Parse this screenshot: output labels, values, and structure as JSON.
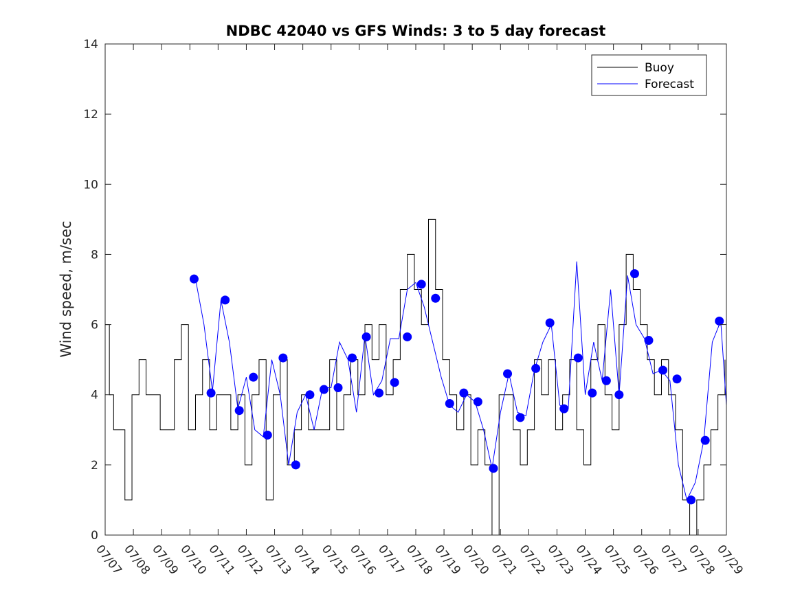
{
  "chart_data": {
    "type": "line",
    "title": "NDBC 42040 vs GFS Winds: 3 to 5 day forecast",
    "xlabel": "",
    "ylabel": "Wind speed, m/sec",
    "xlim": [
      7,
      29
    ],
    "ylim": [
      0,
      14
    ],
    "xticks": [
      "07/07",
      "07/08",
      "07/09",
      "07/10",
      "07/11",
      "07/12",
      "07/13",
      "07/14",
      "07/15",
      "07/16",
      "07/17",
      "07/18",
      "07/19",
      "07/20",
      "07/21",
      "07/22",
      "07/23",
      "07/24",
      "07/25",
      "07/26",
      "07/27",
      "07/28",
      "07/29"
    ],
    "yticks": [
      0,
      2,
      4,
      6,
      8,
      10,
      12,
      14
    ],
    "grid": false,
    "legend": {
      "position": "top-right",
      "entries": [
        "Buoy",
        "Forecast"
      ]
    },
    "colors": {
      "buoy": "#000000",
      "forecast": "#0000ff",
      "markers": "#0000ff"
    },
    "series": [
      {
        "name": "Buoy",
        "color": "#000000",
        "x": [
          7.0,
          7.15,
          7.3,
          7.5,
          7.7,
          7.95,
          8.2,
          8.45,
          8.7,
          8.95,
          9.2,
          9.45,
          9.7,
          9.95,
          10.2,
          10.45,
          10.7,
          10.95,
          11.2,
          11.45,
          11.7,
          11.95,
          12.2,
          12.45,
          12.7,
          12.95,
          13.2,
          13.45,
          13.7,
          13.95,
          14.2,
          14.45,
          14.7,
          14.95,
          15.2,
          15.45,
          15.7,
          15.95,
          16.2,
          16.45,
          16.7,
          16.95,
          17.2,
          17.45,
          17.7,
          17.95,
          18.2,
          18.45,
          18.7,
          18.95,
          19.2,
          19.45,
          19.7,
          19.95,
          20.2,
          20.45,
          20.7,
          20.95,
          21.2,
          21.45,
          21.7,
          21.95,
          22.2,
          22.45,
          22.7,
          22.95,
          23.2,
          23.45,
          23.7,
          23.95,
          24.2,
          24.45,
          24.7,
          24.95,
          25.2,
          25.45,
          25.7,
          25.95,
          26.2,
          26.45,
          26.7,
          26.95,
          27.2,
          27.45,
          27.7,
          27.95,
          28.2,
          28.45,
          28.7,
          28.95
        ],
        "y": [
          6,
          4,
          3,
          3,
          1,
          4,
          5,
          4,
          4,
          3,
          3,
          5,
          6,
          3,
          4,
          5,
          3,
          4,
          4,
          3,
          4,
          2,
          4,
          5,
          1,
          4,
          5,
          2,
          3,
          4,
          3,
          3,
          3,
          5,
          3,
          4,
          5,
          4,
          6,
          5,
          6,
          4,
          5,
          7,
          8,
          7,
          6,
          9,
          7,
          5,
          4,
          3,
          4,
          2,
          3,
          2,
          0,
          4,
          4,
          3,
          2,
          3,
          5,
          4,
          5,
          3,
          4,
          5,
          3,
          2,
          5,
          6,
          4,
          3,
          6,
          8,
          7,
          6,
          5,
          4,
          5,
          4,
          3,
          1,
          0,
          1,
          2,
          3,
          4,
          5
        ]
      },
      {
        "name": "Forecast",
        "color": "#0000ff",
        "x": [
          10.2,
          10.5,
          10.8,
          11.1,
          11.4,
          11.7,
          12.0,
          12.3,
          12.6,
          12.9,
          13.2,
          13.5,
          13.8,
          14.1,
          14.4,
          14.7,
          15.0,
          15.3,
          15.6,
          15.9,
          16.2,
          16.5,
          16.8,
          17.1,
          17.4,
          17.7,
          18.0,
          18.3,
          18.6,
          18.9,
          19.2,
          19.5,
          19.8,
          20.1,
          20.4,
          20.7,
          21.0,
          21.3,
          21.6,
          21.9,
          22.2,
          22.5,
          22.8,
          23.1,
          23.4,
          23.7,
          24.0,
          24.3,
          24.6,
          24.9,
          25.2,
          25.5,
          25.8,
          26.1,
          26.4,
          26.7,
          27.0,
          27.3,
          27.6,
          27.9,
          28.2,
          28.5,
          28.8,
          29.0
        ],
        "y": [
          7.3,
          6.0,
          4.1,
          6.7,
          5.5,
          3.6,
          4.5,
          3.0,
          2.8,
          5.0,
          4.0,
          2.0,
          3.5,
          4.0,
          3.0,
          4.2,
          4.2,
          5.5,
          5.0,
          3.5,
          5.7,
          4.0,
          4.4,
          5.6,
          5.6,
          7.0,
          7.2,
          6.5,
          5.5,
          4.5,
          3.7,
          3.5,
          4.0,
          3.8,
          3.0,
          1.9,
          3.5,
          4.6,
          3.5,
          3.4,
          4.7,
          5.5,
          6.0,
          3.7,
          3.6,
          7.8,
          4.0,
          5.5,
          4.4,
          7.0,
          4.0,
          7.4,
          6.0,
          5.6,
          4.6,
          4.7,
          4.4,
          2.0,
          1.0,
          1.5,
          2.7,
          5.5,
          6.1,
          3.7
        ]
      }
    ],
    "markers": {
      "name": "Forecast markers",
      "x": [
        10.15,
        10.75,
        11.25,
        11.75,
        12.25,
        12.75,
        13.3,
        13.75,
        14.25,
        14.75,
        15.25,
        15.75,
        16.25,
        16.7,
        17.25,
        17.7,
        18.2,
        18.7,
        19.2,
        19.7,
        20.2,
        20.75,
        21.25,
        21.7,
        22.25,
        22.75,
        23.25,
        23.75,
        24.25,
        24.75,
        25.2,
        25.75,
        26.25,
        26.75,
        27.25,
        27.75,
        28.25,
        28.75
      ],
      "y": [
        7.3,
        4.05,
        6.7,
        3.55,
        4.5,
        2.85,
        5.05,
        2.0,
        4.0,
        4.15,
        4.2,
        5.05,
        5.65,
        4.05,
        4.35,
        5.65,
        7.15,
        6.75,
        3.75,
        4.05,
        3.8,
        1.9,
        4.6,
        3.35,
        4.75,
        6.05,
        3.6,
        5.05,
        4.05,
        4.4,
        4.0,
        7.45,
        5.55,
        4.7,
        4.45,
        1.0,
        2.7,
        6.1
      ]
    }
  }
}
